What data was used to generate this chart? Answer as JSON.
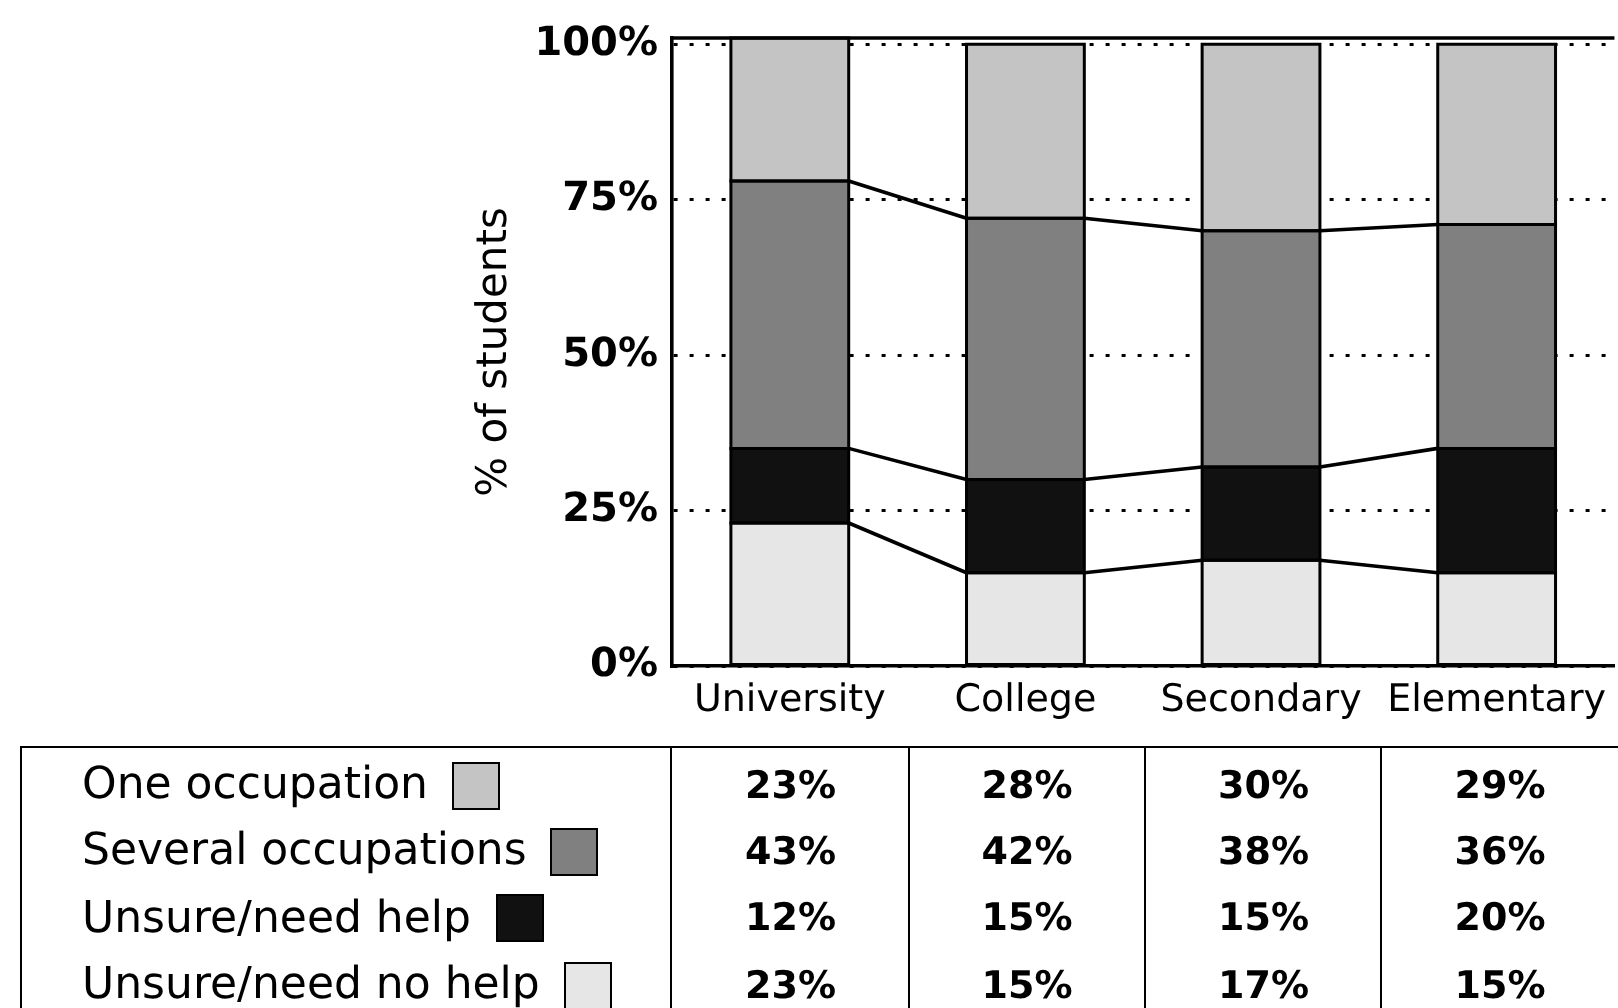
{
  "chart_data": {
    "type": "bar",
    "ylabel": "% of students",
    "categories": [
      "University",
      "College",
      "Secondary",
      "Elementary"
    ],
    "series": [
      {
        "name": "Unsure/need no help",
        "color": "#e6e6e6",
        "values": [
          23,
          15,
          17,
          15
        ],
        "value_labels": [
          "23%",
          "15%",
          "17%",
          "15%"
        ]
      },
      {
        "name": "Unsure/need help",
        "color": "#111111",
        "values": [
          12,
          15,
          15,
          20
        ],
        "value_labels": [
          "12%",
          "15%",
          "15%",
          "20%"
        ]
      },
      {
        "name": "Several occupations",
        "color": "#808080",
        "values": [
          43,
          42,
          38,
          36
        ],
        "value_labels": [
          "43%",
          "42%",
          "38%",
          "36%"
        ]
      },
      {
        "name": "One occupation",
        "color": "#c4c4c4",
        "values": [
          23,
          28,
          30,
          29
        ],
        "value_labels": [
          "23%",
          "28%",
          "30%",
          "29%"
        ]
      }
    ],
    "stacked": true,
    "ylim": [
      0,
      101
    ],
    "yticks": [
      {
        "value": 0,
        "label": "0%"
      },
      {
        "value": 25,
        "label": "25%"
      },
      {
        "value": 50,
        "label": "50%"
      },
      {
        "value": 75,
        "label": "75%"
      },
      {
        "value": 100,
        "label": "100%"
      }
    ],
    "grid": "y",
    "legend": "bottom"
  }
}
